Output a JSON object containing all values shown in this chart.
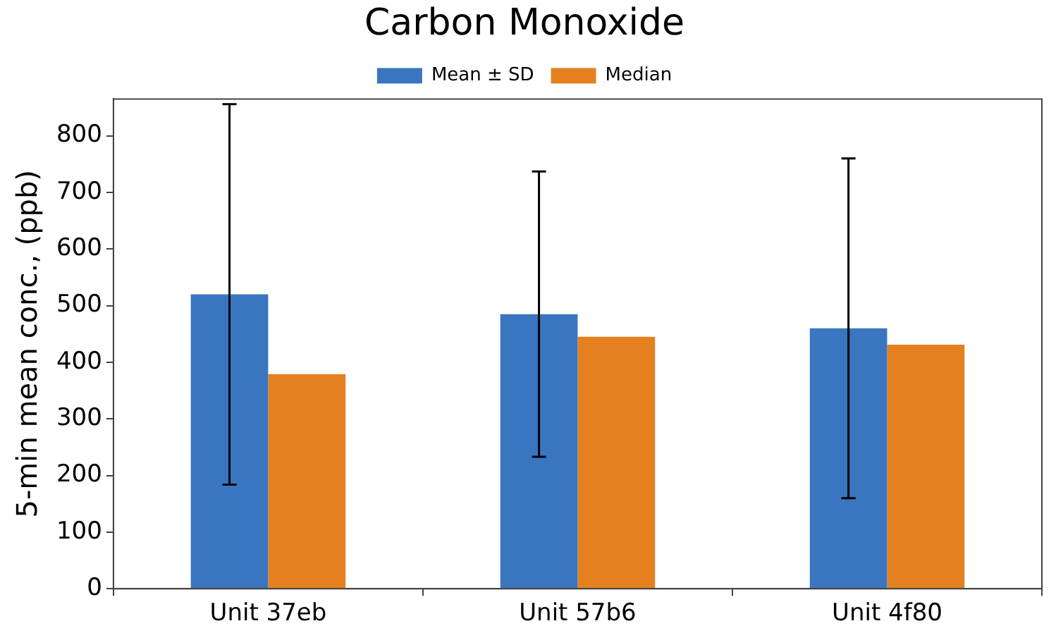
{
  "chart_data": {
    "type": "bar",
    "title": "Carbon Monoxide",
    "ylabel": "5-min mean conc., (ppb)",
    "categories": [
      "Unit 37eb",
      "Unit 57b6",
      "Unit 4f80"
    ],
    "series": [
      {
        "name": "Mean ± SD",
        "color": "#3a76bf",
        "values": [
          520,
          485,
          460
        ],
        "errors": [
          336,
          252,
          300
        ]
      },
      {
        "name": "Median",
        "color": "#e58020",
        "values": [
          379,
          445,
          431
        ]
      }
    ],
    "ylim": [
      0,
      865
    ],
    "yticks": [
      0,
      100,
      200,
      300,
      400,
      500,
      600,
      700,
      800
    ],
    "grid": false,
    "legend": "top"
  }
}
